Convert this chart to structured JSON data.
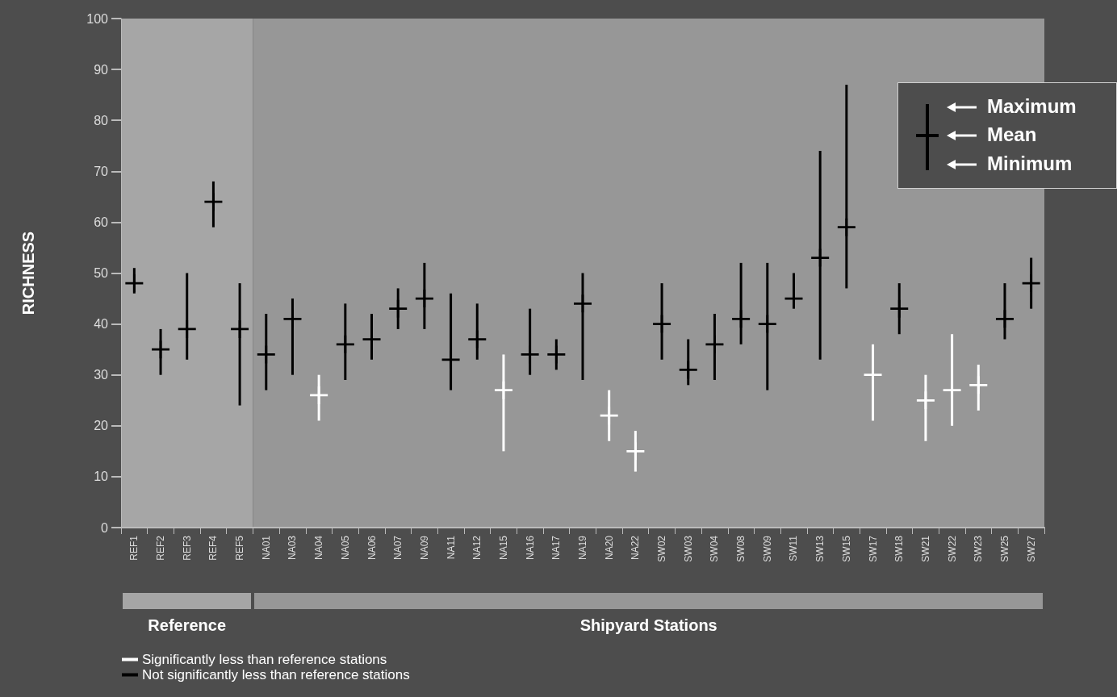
{
  "chart_data": {
    "type": "scatter",
    "ylabel": "RICHNESS",
    "categories": [
      "REF1",
      "REF2",
      "REF3",
      "REF4",
      "REF5",
      "NA01",
      "NA03",
      "NA04",
      "NA05",
      "NA06",
      "NA07",
      "NA09",
      "NA11",
      "NA12",
      "NA15",
      "NA16",
      "NA17",
      "NA19",
      "NA20",
      "NA22",
      "SW02",
      "SW03",
      "SW04",
      "SW08",
      "SW09",
      "SW11",
      "SW13",
      "SW15",
      "SW17",
      "SW18",
      "SW21",
      "SW22",
      "SW23",
      "SW25",
      "SW27"
    ],
    "series": [
      {
        "name": "Significantly less than reference stations",
        "color": "#ffffff",
        "values": [
          null,
          null,
          null,
          null,
          null,
          null,
          null,
          26,
          null,
          null,
          null,
          null,
          null,
          null,
          27,
          null,
          null,
          null,
          22,
          15,
          null,
          null,
          null,
          null,
          null,
          null,
          null,
          null,
          30,
          null,
          25,
          27,
          28,
          null,
          null
        ],
        "errors": [
          null,
          null,
          null,
          null,
          null,
          null,
          null,
          [
            21,
            30
          ],
          null,
          null,
          null,
          null,
          null,
          null,
          [
            15,
            34
          ],
          null,
          null,
          null,
          [
            17,
            27
          ],
          [
            11,
            19
          ],
          null,
          null,
          null,
          null,
          null,
          null,
          null,
          null,
          [
            21,
            36
          ],
          null,
          [
            17,
            30
          ],
          [
            20,
            38
          ],
          [
            23,
            32
          ],
          null,
          null
        ]
      },
      {
        "name": "Not significantly less than reference stations",
        "color": "#000000",
        "values": [
          48,
          35,
          39,
          64,
          39,
          34,
          41,
          null,
          36,
          37,
          43,
          45,
          33,
          37,
          null,
          34,
          34,
          44,
          null,
          null,
          40,
          31,
          36,
          41,
          40,
          45,
          53,
          59,
          null,
          43,
          null,
          null,
          null,
          41,
          48
        ],
        "errors": [
          [
            46,
            51
          ],
          [
            30,
            39
          ],
          [
            33,
            50
          ],
          [
            59,
            68
          ],
          [
            24,
            48
          ],
          [
            27,
            42
          ],
          [
            30,
            45
          ],
          null,
          [
            29,
            44
          ],
          [
            33,
            42
          ],
          [
            39,
            47
          ],
          [
            39,
            52
          ],
          [
            27,
            46
          ],
          [
            33,
            44
          ],
          null,
          [
            30,
            43
          ],
          [
            31,
            37
          ],
          [
            29,
            50
          ],
          null,
          null,
          [
            33,
            48
          ],
          [
            28,
            37
          ],
          [
            29,
            42
          ],
          [
            36,
            52
          ],
          [
            27,
            52
          ],
          [
            43,
            50
          ],
          [
            33,
            74
          ],
          [
            47,
            87
          ],
          null,
          [
            38,
            48
          ],
          null,
          null,
          null,
          [
            37,
            48
          ],
          [
            43,
            53
          ]
        ]
      }
    ],
    "ylim": [
      0,
      100
    ],
    "yticks": [
      0,
      10,
      20,
      30,
      40,
      50,
      60,
      70,
      80,
      90,
      100
    ],
    "grid": false,
    "legend": "bottom",
    "marker": "cross",
    "bands": [
      {
        "axis": "x",
        "from": "REF1",
        "to": "REF5",
        "color": "#a6a6a6"
      },
      {
        "axis": "x",
        "from": "NA01",
        "to": "SW27",
        "color": "#979797"
      }
    ],
    "annotations": [
      "Maximum",
      "Mean",
      "Minimum",
      "Reference",
      "Shipyard Stations"
    ]
  }
}
